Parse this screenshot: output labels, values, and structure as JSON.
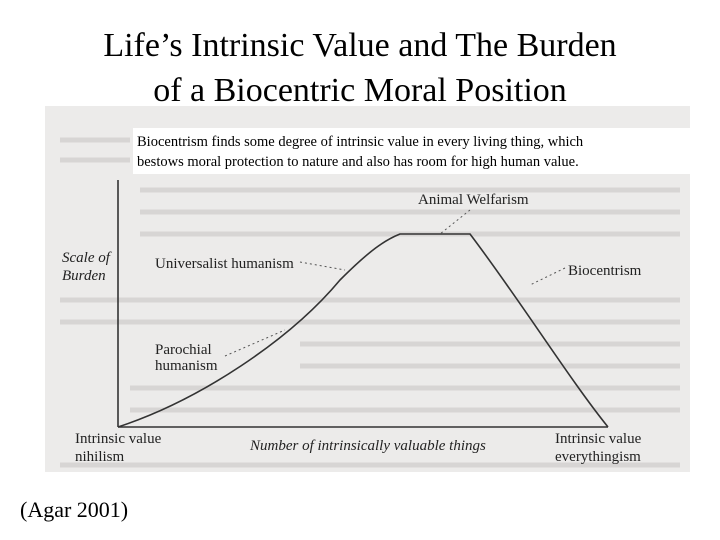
{
  "title": {
    "lines": [
      "Life’s Intrinsic Value and The Burden",
      "of a Biocentric Moral Position"
    ]
  },
  "caption": {
    "lines": [
      "Biocentrism finds some degree of intrinsic value in every living thing, which",
      "bestows moral protection to nature and also has room for high human value."
    ]
  },
  "diagram": {
    "y_axis_label": [
      "Scale of",
      "Burden"
    ],
    "x_axis_label": "Number of intrinsically valuable things",
    "left_end": [
      "Intrinsic value",
      "nihilism"
    ],
    "right_end": [
      "Intrinsic value",
      "everythingism"
    ],
    "nodes": [
      {
        "label": [
          "Animal Welfarism"
        ]
      },
      {
        "label": [
          "Universalist humanism"
        ]
      },
      {
        "label": [
          "Biocentrism"
        ]
      },
      {
        "label": [
          "Parochial",
          "humanism"
        ]
      }
    ]
  },
  "citation": "(Agar 2001)"
}
